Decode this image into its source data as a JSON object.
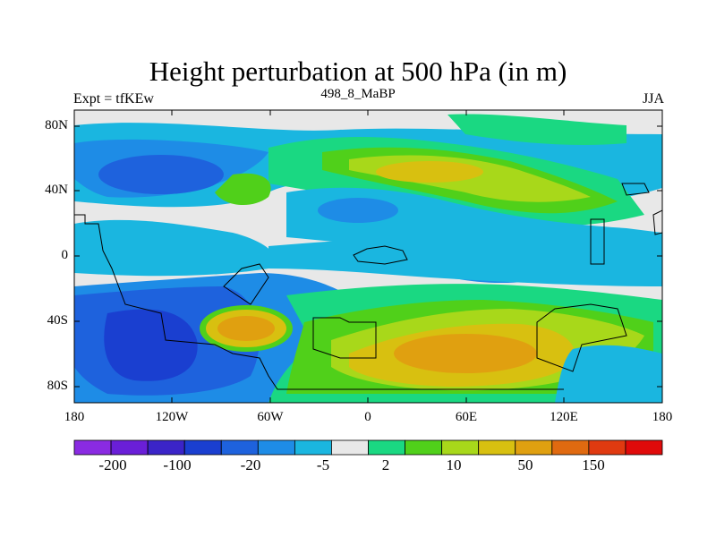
{
  "title": "Height perturbation at 500 hPa (in m)",
  "left_string": "Expt = tfKEw",
  "center_string": "498_8_MaBP",
  "right_string": "JJA",
  "lat_labels": [
    "80N",
    "40N",
    "0",
    "40S",
    "80S"
  ],
  "lon_labels": [
    "180",
    "120W",
    "60W",
    "0",
    "60E",
    "120E",
    "180"
  ],
  "colorbar": {
    "colors": [
      "#8a2be2",
      "#6a1fd8",
      "#3b24c8",
      "#1a3fd0",
      "#1e62dd",
      "#1e8ce6",
      "#1ab6e0",
      "#e8e8e8",
      "#1ad882",
      "#50d01a",
      "#a8d81a",
      "#d8c010",
      "#e0a010",
      "#e06a10",
      "#e03a10",
      "#e00a0a"
    ],
    "labels": [
      "-200",
      "-100",
      "-20",
      "-5",
      "2",
      "10",
      "50",
      "150"
    ]
  },
  "palette": {
    "deep_purple": "#3b24c8",
    "dark_blue": "#1a3fd0",
    "blue": "#1e62dd",
    "mid_blue": "#1e8ce6",
    "cyan": "#1ab6e0",
    "gray": "#e8e8e8",
    "teal_green": "#1ad882",
    "green": "#50d01a",
    "yellow_green": "#a8d81a",
    "mustard": "#d8c010",
    "orange": "#e0a010"
  }
}
